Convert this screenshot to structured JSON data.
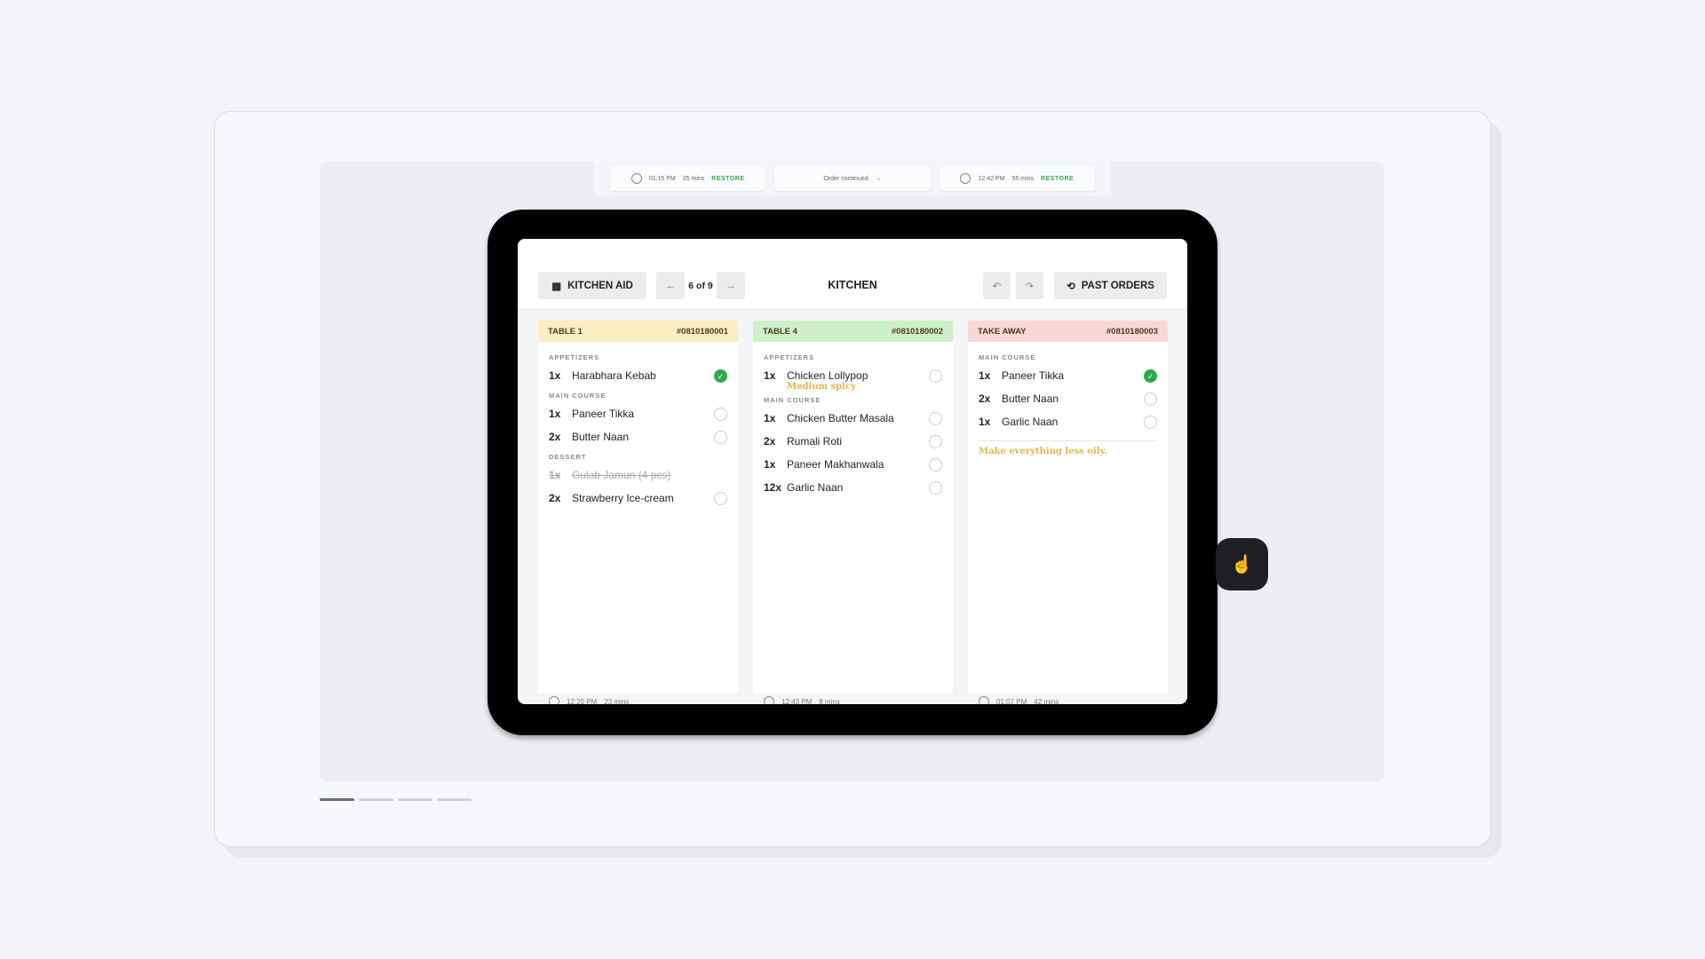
{
  "strip": [
    {
      "time": "01:15 PM",
      "dur": "25 mins",
      "action": "RESTORE"
    },
    {
      "text": "Order continued"
    },
    {
      "time": "12:42 PM",
      "dur": "55 mins",
      "action": "RESTORE"
    }
  ],
  "header": {
    "kitchen_aid": "KITCHEN AID",
    "pager": "6 of 9",
    "title": "KITCHEN",
    "past_orders": "PAST ORDERS"
  },
  "orders": [
    {
      "table": "TABLE 1",
      "id": "#0810180001",
      "color": "#fbeec0",
      "footer_time": "12:20 PM",
      "footer_dur": "23 mins",
      "sections": [
        {
          "name": "APPETIZERS",
          "items": [
            {
              "qty": "1x",
              "name": "Harabhara Kebab",
              "done": true
            }
          ]
        },
        {
          "name": "MAIN COURSE",
          "items": [
            {
              "qty": "1x",
              "name": "Paneer Tikka",
              "done": false
            },
            {
              "qty": "2x",
              "name": "Butter Naan",
              "done": false
            }
          ]
        },
        {
          "name": "DESSERT",
          "items": [
            {
              "qty": "1x",
              "name": "Gulab Jamun (4 pcs)",
              "cancelled": true
            },
            {
              "qty": "2x",
              "name": "Strawberry Ice-cream",
              "done": false
            }
          ]
        }
      ]
    },
    {
      "table": "TABLE 4",
      "id": "#0810180002",
      "color": "#cdf0c8",
      "footer_time": "12:43 PM",
      "footer_dur": "8 mins",
      "sections": [
        {
          "name": "APPETIZERS",
          "items": [
            {
              "qty": "1x",
              "name": "Chicken Lollypop",
              "note": "Medium spicy",
              "done": false
            }
          ]
        },
        {
          "name": "MAIN COURSE",
          "items": [
            {
              "qty": "1x",
              "name": "Chicken Butter Masala",
              "done": false
            },
            {
              "qty": "2x",
              "name": "Rumali Roti",
              "done": false
            },
            {
              "qty": "1x",
              "name": "Paneer Makhanwala",
              "done": false
            },
            {
              "qty": "12x",
              "name": "Garlic Naan",
              "done": false
            }
          ]
        }
      ]
    },
    {
      "table": "TAKE AWAY",
      "id": "#0810180003",
      "color": "#fbd6d8",
      "footer_time": "01:07 PM",
      "footer_dur": "42 mins",
      "order_note": "Make everything less oily.",
      "sections": [
        {
          "name": "MAIN COURSE",
          "items": [
            {
              "qty": "1x",
              "name": "Paneer Tikka",
              "done": true
            },
            {
              "qty": "2x",
              "name": "Butter Naan",
              "done": false
            },
            {
              "qty": "1x",
              "name": "Garlic Naan",
              "done": false
            }
          ]
        }
      ]
    }
  ],
  "progress": {
    "current": 1,
    "total": 4
  }
}
